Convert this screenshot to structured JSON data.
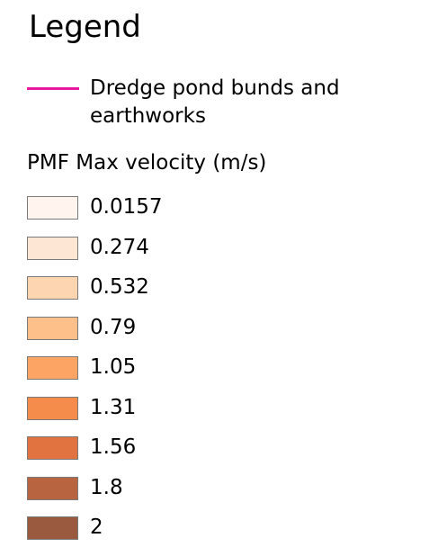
{
  "legend": {
    "title": "Legend",
    "line_item": {
      "label": "Dredge pond bunds and earthworks",
      "color": "#e8199e"
    },
    "group": {
      "heading": "PMF Max velocity (m/s)",
      "items": [
        {
          "label": "0.0157",
          "color": "#fff5ee"
        },
        {
          "label": "0.274",
          "color": "#fee6d4"
        },
        {
          "label": "0.532",
          "color": "#fdd5b0"
        },
        {
          "label": "0.79",
          "color": "#fdc08a"
        },
        {
          "label": "1.05",
          "color": "#fca464"
        },
        {
          "label": "1.31",
          "color": "#f58c4c"
        },
        {
          "label": "1.56",
          "color": "#e07340"
        },
        {
          "label": "1.8",
          "color": "#b96440"
        },
        {
          "label": "2",
          "color": "#9a5a40"
        }
      ]
    }
  }
}
